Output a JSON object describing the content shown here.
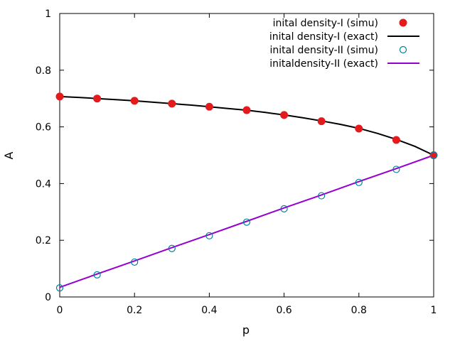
{
  "chart_data": {
    "type": "line",
    "title": "",
    "xlabel": "p",
    "ylabel": "A",
    "xlim": [
      0,
      1
    ],
    "ylim": [
      0,
      1
    ],
    "xticks": [
      "0",
      "0.2",
      "0.4",
      "0.6",
      "0.8",
      "1"
    ],
    "yticks": [
      "0",
      "0.2",
      "0.4",
      "0.6",
      "0.8",
      "1"
    ],
    "grid": false,
    "legend_position": "top-right",
    "series": [
      {
        "name": "inital density-I (simu)",
        "kind": "scatter",
        "marker": "filled-circle",
        "color": "#e41a1c",
        "x": [
          0,
          0.1,
          0.2,
          0.3,
          0.4,
          0.5,
          0.6,
          0.7,
          0.8,
          0.9,
          1.0
        ],
        "y": [
          0.707,
          0.7,
          0.692,
          0.682,
          0.671,
          0.659,
          0.642,
          0.62,
          0.594,
          0.554,
          0.5
        ]
      },
      {
        "name": "inital density-I (exact)",
        "kind": "line",
        "color": "#000000",
        "x": [
          0,
          0.05,
          0.1,
          0.15,
          0.2,
          0.25,
          0.3,
          0.35,
          0.4,
          0.45,
          0.5,
          0.55,
          0.6,
          0.65,
          0.7,
          0.75,
          0.8,
          0.85,
          0.9,
          0.95,
          1.0
        ],
        "y": [
          0.707,
          0.704,
          0.7,
          0.696,
          0.692,
          0.687,
          0.682,
          0.677,
          0.671,
          0.665,
          0.659,
          0.651,
          0.642,
          0.632,
          0.621,
          0.609,
          0.595,
          0.577,
          0.556,
          0.531,
          0.5
        ]
      },
      {
        "name": "inital density-II (simu)",
        "kind": "scatter",
        "marker": "open-circle",
        "color": "#0080a0",
        "x": [
          0,
          0.1,
          0.2,
          0.3,
          0.4,
          0.5,
          0.6,
          0.7,
          0.8,
          0.9,
          1.0
        ],
        "y": [
          0.032,
          0.078,
          0.123,
          0.171,
          0.216,
          0.264,
          0.311,
          0.357,
          0.404,
          0.45,
          0.5
        ]
      },
      {
        "name": "initaldensity-II (exact)",
        "kind": "line",
        "color": "#9400d3",
        "x": [
          0,
          0.1,
          0.2,
          0.3,
          0.4,
          0.5,
          0.6,
          0.7,
          0.8,
          0.9,
          1.0
        ],
        "y": [
          0.034,
          0.081,
          0.127,
          0.174,
          0.22,
          0.267,
          0.314,
          0.36,
          0.407,
          0.453,
          0.5
        ]
      }
    ]
  }
}
